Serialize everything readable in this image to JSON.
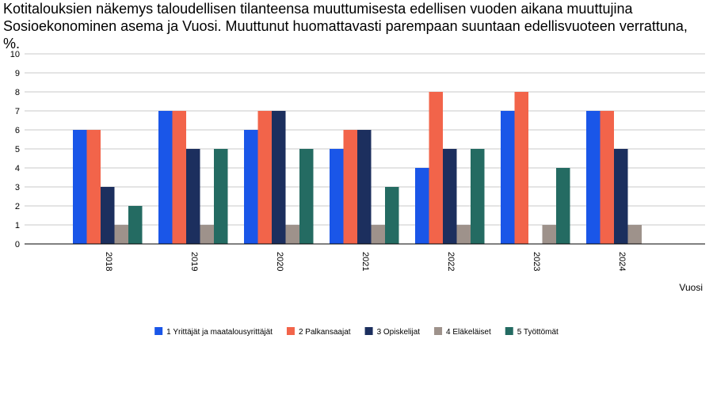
{
  "chart_data": {
    "type": "bar",
    "title": "Kotitalouksien näkemys taloudellisen tilanteensa muuttumisesta edellisen vuoden aikana muuttujina Sosioekonominen asema ja Vuosi. Muuttunut huomattavasti parempaan suuntaan edellisvuoteen verrattuna, %.",
    "xlabel": "Vuosi",
    "ylabel": "",
    "ylim": [
      0,
      10
    ],
    "yticks": [
      "0",
      "1",
      "2",
      "3",
      "4",
      "5",
      "6",
      "7",
      "8",
      "9",
      "10"
    ],
    "grid": true,
    "legend_position": "bottom",
    "categories": [
      "2018",
      "2019",
      "2020",
      "2021",
      "2022",
      "2023",
      "2024"
    ],
    "series": [
      {
        "name": "1 Yrittäjät ja maatalousyrittäjät",
        "color": "#1a56e8",
        "values": [
          6,
          7,
          6,
          5,
          4,
          7,
          7
        ]
      },
      {
        "name": "2 Palkansaajat",
        "color": "#f2644a",
        "values": [
          6,
          7,
          7,
          6,
          8,
          8,
          7
        ]
      },
      {
        "name": "3 Opiskelijat",
        "color": "#1c2f5e",
        "values": [
          3,
          5,
          7,
          6,
          5,
          null,
          5
        ]
      },
      {
        "name": "4 Eläkeläiset",
        "color": "#9e928b",
        "values": [
          1,
          1,
          1,
          1,
          1,
          1,
          1
        ]
      },
      {
        "name": "5 Työttömät",
        "color": "#246b62",
        "values": [
          2,
          5,
          5,
          3,
          5,
          4,
          null
        ]
      }
    ]
  }
}
